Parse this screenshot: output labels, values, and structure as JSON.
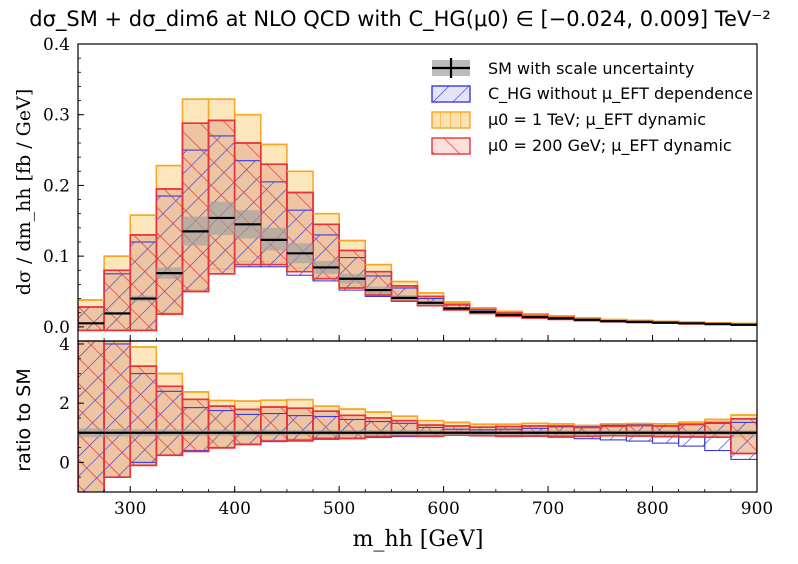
{
  "title": "dσ_SM + dσ_dim6 at NLO QCD with C_HG(μ0) ∈ [−0.024, 0.009] TeV⁻²",
  "chart_data": {
    "type": "histogram",
    "x_label": "m_hh [GeV]",
    "xlim": [
      250,
      900
    ],
    "x_ticks": [
      "300",
      "400",
      "500",
      "600",
      "700",
      "800",
      "900"
    ],
    "bin_edges": [
      250,
      275,
      300,
      325,
      350,
      375,
      400,
      425,
      450,
      475,
      500,
      525,
      550,
      575,
      600,
      625,
      650,
      675,
      700,
      725,
      750,
      775,
      800,
      825,
      850,
      875,
      900
    ],
    "top_panel": {
      "ylabel": "dσ / dm_hh [fb / GeV]",
      "ylim": [
        -0.02,
        0.4
      ],
      "y_ticks": [
        "0.0",
        "0.1",
        "0.2",
        "0.3",
        "0.4"
      ],
      "sm_central": [
        0.005,
        0.019,
        0.04,
        0.076,
        0.135,
        0.154,
        0.145,
        0.123,
        0.104,
        0.084,
        0.068,
        0.052,
        0.041,
        0.034,
        0.026,
        0.021,
        0.017,
        0.014,
        0.012,
        0.01,
        0.008,
        0.007,
        0.006,
        0.005,
        0.004,
        0.003
      ],
      "sm_scale_band": [
        [
          0.004,
          0.006
        ],
        [
          0.017,
          0.021
        ],
        [
          0.036,
          0.044
        ],
        [
          0.068,
          0.084
        ],
        [
          0.115,
          0.156
        ],
        [
          0.13,
          0.177
        ],
        [
          0.125,
          0.165
        ],
        [
          0.108,
          0.14
        ],
        [
          0.09,
          0.118
        ],
        [
          0.075,
          0.093
        ],
        [
          0.061,
          0.075
        ],
        [
          0.047,
          0.057
        ],
        [
          0.037,
          0.045
        ],
        [
          0.031,
          0.037
        ],
        [
          0.024,
          0.028
        ],
        [
          0.019,
          0.023
        ],
        [
          0.0155,
          0.0185
        ],
        [
          0.0128,
          0.0152
        ],
        [
          0.011,
          0.013
        ],
        [
          0.009,
          0.011
        ],
        [
          0.0073,
          0.0087
        ],
        [
          0.0064,
          0.0076
        ],
        [
          0.0055,
          0.0065
        ],
        [
          0.0046,
          0.0054
        ],
        [
          0.0037,
          0.0043
        ],
        [
          0.0028,
          0.0032
        ]
      ],
      "chg_no_mu_eft_band": [
        [
          -0.005,
          0.028
        ],
        [
          -0.005,
          0.075
        ],
        [
          -0.005,
          0.12
        ],
        [
          0.018,
          0.185
        ],
        [
          0.05,
          0.25
        ],
        [
          0.075,
          0.27
        ],
        [
          0.085,
          0.235
        ],
        [
          0.085,
          0.205
        ],
        [
          0.073,
          0.165
        ],
        [
          0.065,
          0.13
        ],
        [
          0.052,
          0.098
        ],
        [
          0.043,
          0.072
        ],
        [
          0.036,
          0.055
        ],
        [
          0.03,
          0.04
        ],
        [
          0.024,
          0.031
        ],
        [
          0.019,
          0.024
        ],
        [
          0.015,
          0.02
        ],
        [
          0.0125,
          0.017
        ],
        [
          0.0105,
          0.0145
        ],
        [
          0.0088,
          0.0115
        ],
        [
          0.0072,
          0.0096
        ],
        [
          0.0062,
          0.0084
        ],
        [
          0.0052,
          0.0071
        ],
        [
          0.0043,
          0.0062
        ],
        [
          0.0035,
          0.0052
        ],
        [
          0.0026,
          0.0042
        ]
      ],
      "mu0_1TeV_band": [
        [
          -0.005,
          0.038
        ],
        [
          -0.005,
          0.1
        ],
        [
          -0.005,
          0.158
        ],
        [
          0.02,
          0.228
        ],
        [
          0.052,
          0.322
        ],
        [
          0.082,
          0.322
        ],
        [
          0.092,
          0.3
        ],
        [
          0.092,
          0.258
        ],
        [
          0.083,
          0.22
        ],
        [
          0.07,
          0.16
        ],
        [
          0.058,
          0.122
        ],
        [
          0.047,
          0.088
        ],
        [
          0.039,
          0.064
        ],
        [
          0.031,
          0.048
        ],
        [
          0.025,
          0.035
        ],
        [
          0.02,
          0.027
        ],
        [
          0.0155,
          0.022
        ],
        [
          0.0128,
          0.0185
        ],
        [
          0.0108,
          0.0156
        ],
        [
          0.009,
          0.0125
        ],
        [
          0.0073,
          0.0104
        ],
        [
          0.0063,
          0.0092
        ],
        [
          0.0053,
          0.0078
        ],
        [
          0.0044,
          0.0068
        ],
        [
          0.0035,
          0.0058
        ],
        [
          0.0026,
          0.0048
        ]
      ],
      "mu0_200GeV_band": [
        [
          -0.005,
          0.028
        ],
        [
          -0.005,
          0.08
        ],
        [
          -0.005,
          0.13
        ],
        [
          0.018,
          0.195
        ],
        [
          0.05,
          0.288
        ],
        [
          0.075,
          0.292
        ],
        [
          0.088,
          0.26
        ],
        [
          0.088,
          0.23
        ],
        [
          0.078,
          0.19
        ],
        [
          0.068,
          0.145
        ],
        [
          0.055,
          0.108
        ],
        [
          0.045,
          0.078
        ],
        [
          0.037,
          0.058
        ],
        [
          0.03,
          0.043
        ],
        [
          0.024,
          0.032
        ],
        [
          0.019,
          0.025
        ],
        [
          0.015,
          0.0205
        ],
        [
          0.0125,
          0.0172
        ],
        [
          0.0106,
          0.0147
        ],
        [
          0.0088,
          0.0118
        ],
        [
          0.0072,
          0.0098
        ],
        [
          0.0062,
          0.0087
        ],
        [
          0.0052,
          0.0074
        ],
        [
          0.0043,
          0.0064
        ],
        [
          0.0035,
          0.0054
        ],
        [
          0.0026,
          0.0044
        ]
      ]
    },
    "ratio_panel": {
      "ylabel": "ratio to SM",
      "ylim": [
        -1.0,
        4.1
      ],
      "y_ticks": [
        "0",
        "2",
        "4"
      ],
      "sm_central": [
        1,
        1,
        1,
        1,
        1,
        1,
        1,
        1,
        1,
        1,
        1,
        1,
        1,
        1,
        1,
        1,
        1,
        1,
        1,
        1,
        1,
        1,
        1,
        1,
        1,
        1
      ],
      "sm_scale_band": [
        [
          0.85,
          1.15
        ],
        [
          0.87,
          1.13
        ],
        [
          0.88,
          1.12
        ],
        [
          0.89,
          1.11
        ],
        [
          0.89,
          1.11
        ],
        [
          0.9,
          1.1
        ],
        [
          0.9,
          1.1
        ],
        [
          0.9,
          1.1
        ],
        [
          0.91,
          1.09
        ],
        [
          0.91,
          1.09
        ],
        [
          0.91,
          1.09
        ],
        [
          0.91,
          1.09
        ],
        [
          0.91,
          1.09
        ],
        [
          0.91,
          1.09
        ],
        [
          0.92,
          1.08
        ],
        [
          0.92,
          1.08
        ],
        [
          0.92,
          1.08
        ],
        [
          0.92,
          1.08
        ],
        [
          0.92,
          1.08
        ],
        [
          0.92,
          1.08
        ],
        [
          0.92,
          1.08
        ],
        [
          0.92,
          1.08
        ],
        [
          0.92,
          1.08
        ],
        [
          0.92,
          1.08
        ],
        [
          0.92,
          1.08
        ],
        [
          0.92,
          1.08
        ]
      ],
      "chg_no_mu_eft_band": [
        [
          -1.5,
          5.5
        ],
        [
          -0.5,
          4.0
        ],
        [
          0.0,
          3.0
        ],
        [
          0.25,
          2.4
        ],
        [
          0.4,
          1.85
        ],
        [
          0.5,
          1.75
        ],
        [
          0.6,
          1.62
        ],
        [
          0.7,
          1.65
        ],
        [
          0.72,
          1.58
        ],
        [
          0.78,
          1.55
        ],
        [
          0.8,
          1.45
        ],
        [
          0.84,
          1.38
        ],
        [
          0.87,
          1.32
        ],
        [
          0.9,
          1.18
        ],
        [
          0.92,
          1.12
        ],
        [
          0.92,
          1.1
        ],
        [
          0.9,
          1.12
        ],
        [
          0.88,
          1.15
        ],
        [
          0.85,
          1.2
        ],
        [
          0.8,
          1.22
        ],
        [
          0.76,
          1.26
        ],
        [
          0.72,
          1.28
        ],
        [
          0.65,
          1.3
        ],
        [
          0.55,
          1.3
        ],
        [
          0.4,
          1.32
        ],
        [
          0.1,
          1.35
        ]
      ],
      "mu0_1TeV_band": [
        [
          -1.5,
          7.5
        ],
        [
          -0.5,
          5.5
        ],
        [
          -0.1,
          3.9
        ],
        [
          0.25,
          3.0
        ],
        [
          0.38,
          2.38
        ],
        [
          0.53,
          2.09
        ],
        [
          0.63,
          2.07
        ],
        [
          0.75,
          2.1
        ],
        [
          0.8,
          2.12
        ],
        [
          0.83,
          1.9
        ],
        [
          0.85,
          1.8
        ],
        [
          0.9,
          1.7
        ],
        [
          0.95,
          1.56
        ],
        [
          0.91,
          1.41
        ],
        [
          0.96,
          1.35
        ],
        [
          0.95,
          1.29
        ],
        [
          0.91,
          1.29
        ],
        [
          0.91,
          1.32
        ],
        [
          0.9,
          1.3
        ],
        [
          0.9,
          1.25
        ],
        [
          0.91,
          1.3
        ],
        [
          0.9,
          1.31
        ],
        [
          0.88,
          1.3
        ],
        [
          0.88,
          1.36
        ],
        [
          0.88,
          1.45
        ],
        [
          0.87,
          1.6
        ]
      ],
      "mu0_200GeV_band": [
        [
          -1.5,
          5.6
        ],
        [
          -0.5,
          4.2
        ],
        [
          -0.1,
          3.25
        ],
        [
          0.24,
          2.57
        ],
        [
          0.37,
          2.13
        ],
        [
          0.49,
          1.9
        ],
        [
          0.61,
          1.79
        ],
        [
          0.72,
          1.87
        ],
        [
          0.75,
          1.83
        ],
        [
          0.81,
          1.73
        ],
        [
          0.81,
          1.59
        ],
        [
          0.87,
          1.5
        ],
        [
          0.9,
          1.41
        ],
        [
          0.88,
          1.26
        ],
        [
          0.92,
          1.23
        ],
        [
          0.9,
          1.19
        ],
        [
          0.88,
          1.21
        ],
        [
          0.89,
          1.23
        ],
        [
          0.88,
          1.23
        ],
        [
          0.88,
          1.18
        ],
        [
          0.9,
          1.22
        ],
        [
          0.89,
          1.24
        ],
        [
          0.87,
          1.23
        ],
        [
          0.86,
          1.28
        ],
        [
          0.85,
          1.35
        ],
        [
          0.3,
          1.47
        ]
      ],
      "sm_error_markers_x": [
        787,
        862,
        887
      ],
      "y_ticks_extra": []
    },
    "legend": {
      "position": "top-right",
      "entries": [
        "SM with scale uncertainty",
        "C_HG without μ_EFT dependence",
        "μ0 = 1 TeV; μ_EFT dynamic",
        "μ0 = 200 GeV; μ_EFT dynamic"
      ]
    },
    "colors": {
      "sm_fill": "#a0a0a0",
      "chg_edge": "#3a3adc",
      "chg_fill": "#e4e4f8",
      "mu1_edge": "#f5a623",
      "mu1_fill": "#fbe2b0",
      "mu200_edge": "#e8333a",
      "mu200_fill": "#f8c8c4",
      "overlap_fill": "#eab99a"
    }
  }
}
